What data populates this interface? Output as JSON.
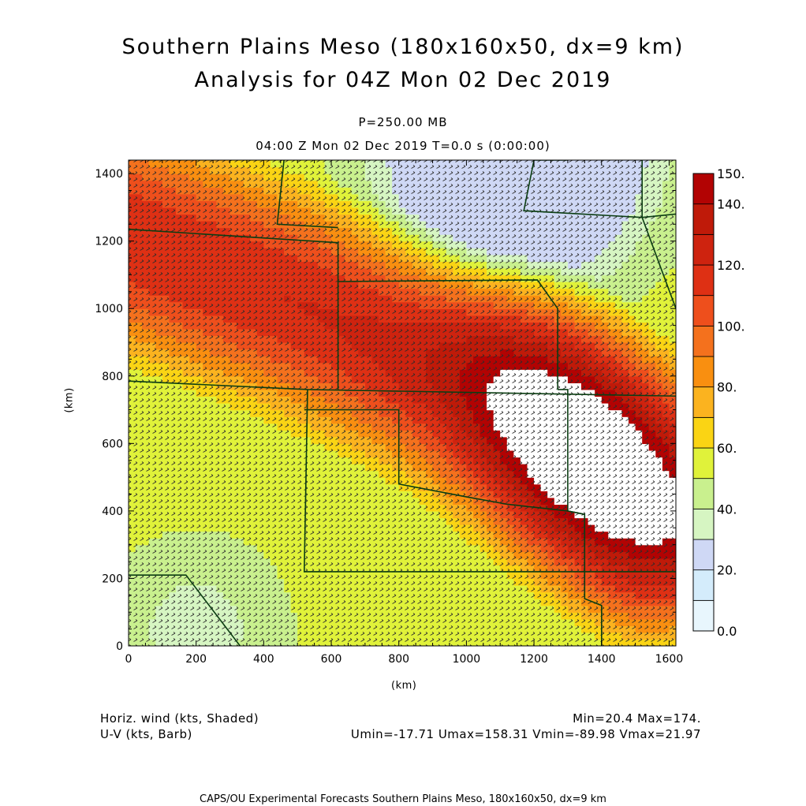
{
  "title_line1": "Southern Plains Meso (180x160x50, dx=9 km)",
  "title_line2": "Analysis for 04Z Mon 02 Dec 2019",
  "level": "P=250.00 MB",
  "valid_time": "04:00 Z Mon 02 Dec 2019    T=0.0 s (0:00:00)",
  "field1_label": "Horiz. wind (kts, Shaded)",
  "field2_label": "U-V (kts, Barb)",
  "stats1": "Min=20.4 Max=174.",
  "stats2": "Umin=-17.71 Umax=158.31 Vmin=-89.98 Vmax=21.97",
  "footer": "CAPS/OU Experimental Forecasts  Southern Plains Meso, 180x160x50, dx=9 km",
  "chart_data": {
    "type": "heatmap",
    "xlabel": "(km)",
    "ylabel": "(km)",
    "xlim": [
      0,
      1620
    ],
    "ylim": [
      0,
      1440
    ],
    "x_ticks": [
      0,
      200,
      400,
      600,
      800,
      1000,
      1200,
      1400,
      1600
    ],
    "y_ticks": [
      0,
      200,
      400,
      600,
      800,
      1000,
      1200,
      1400
    ],
    "colorbar": {
      "levels": [
        0,
        10,
        20,
        30,
        40,
        50,
        60,
        70,
        80,
        90,
        100,
        110,
        120,
        130,
        140,
        150
      ],
      "tick_labels": [
        "0.0",
        "20.",
        "40.",
        "60.",
        "80.",
        "100.",
        "120.",
        "140.",
        "150."
      ],
      "tick_values": [
        0,
        20,
        40,
        60,
        80,
        100,
        120,
        140,
        150
      ],
      "colors": [
        "#e8f6fd",
        "#d4ecfb",
        "#cfd8f5",
        "#d6f5c2",
        "#c9f08e",
        "#e0f23a",
        "#fad414",
        "#fbb31f",
        "#f98f10",
        "#f4711d",
        "#ee4f1c",
        "#de3014",
        "#ce230f",
        "#bf1a09",
        "#b20303"
      ]
    },
    "min": 20.4,
    "max": 174,
    "umin": -17.71,
    "umax": 158.31,
    "vmin": -89.98,
    "vmax": 21.97
  }
}
